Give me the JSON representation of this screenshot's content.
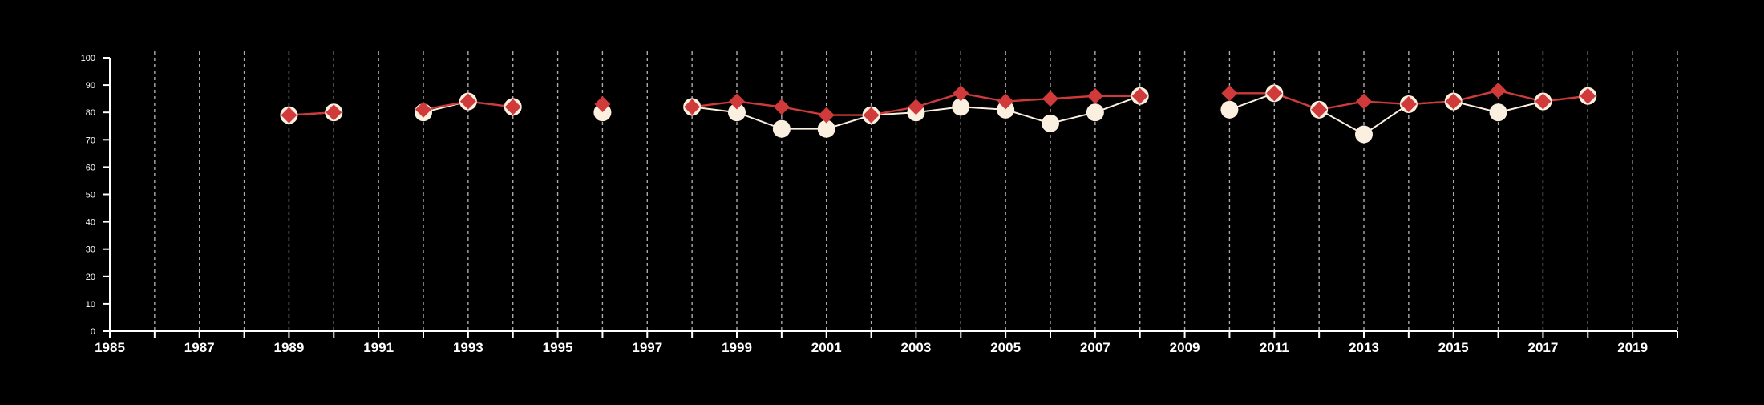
{
  "colors": {
    "background": "#000000",
    "axis": "#ffffff",
    "grid": "#aaaaaa",
    "series_a": "#fbf0e0",
    "series_b": "#d03a3a"
  },
  "chart_data": {
    "type": "line",
    "title": "",
    "xlabel": "",
    "ylabel": "",
    "xlim": [
      1985,
      2020
    ],
    "ylim": [
      0,
      100
    ],
    "x_ticks": [
      1985,
      1987,
      1989,
      1991,
      1993,
      1995,
      1997,
      1999,
      2001,
      2003,
      2005,
      2007,
      2009,
      2011,
      2013,
      2015,
      2017,
      2019
    ],
    "y_ticks": [
      0,
      10,
      20,
      30,
      40,
      50,
      60,
      70,
      80,
      90,
      100
    ],
    "vertical_gridlines": [
      1986,
      1987,
      1988,
      1989,
      1990,
      1991,
      1992,
      1993,
      1994,
      1995,
      1996,
      1997,
      1998,
      1999,
      2000,
      2001,
      2002,
      2003,
      2004,
      2005,
      2006,
      2007,
      2008,
      2009,
      2010,
      2011,
      2012,
      2013,
      2014,
      2015,
      2016,
      2017,
      2018,
      2019,
      2020
    ],
    "grid": "vertical dashed",
    "series": [
      {
        "marker": "circle",
        "color": "#fbf0e0",
        "x": [
          1989,
          1990,
          1992,
          1993,
          1994,
          1996,
          1998,
          1999,
          2000,
          2001,
          2002,
          2003,
          2004,
          2005,
          2006,
          2007,
          2008,
          2010,
          2011,
          2012,
          2013,
          2014,
          2015,
          2016,
          2017,
          2018
        ],
        "values": [
          79,
          80,
          80,
          84,
          82,
          80,
          82,
          80,
          74,
          74,
          79,
          80,
          82,
          81,
          76,
          80,
          86,
          81,
          87,
          81,
          72,
          83,
          84,
          80,
          84,
          86
        ]
      },
      {
        "marker": "diamond",
        "color": "#d03a3a",
        "x": [
          1989,
          1990,
          1992,
          1993,
          1994,
          1996,
          1998,
          1999,
          2000,
          2001,
          2002,
          2003,
          2004,
          2005,
          2006,
          2007,
          2008,
          2010,
          2011,
          2012,
          2013,
          2014,
          2015,
          2016,
          2017,
          2018
        ],
        "values": [
          79,
          80,
          81,
          84,
          82,
          83,
          82,
          84,
          82,
          79,
          79,
          82,
          87,
          84,
          85,
          86,
          86,
          87,
          87,
          81,
          84,
          83,
          84,
          88,
          84,
          86
        ]
      }
    ]
  }
}
